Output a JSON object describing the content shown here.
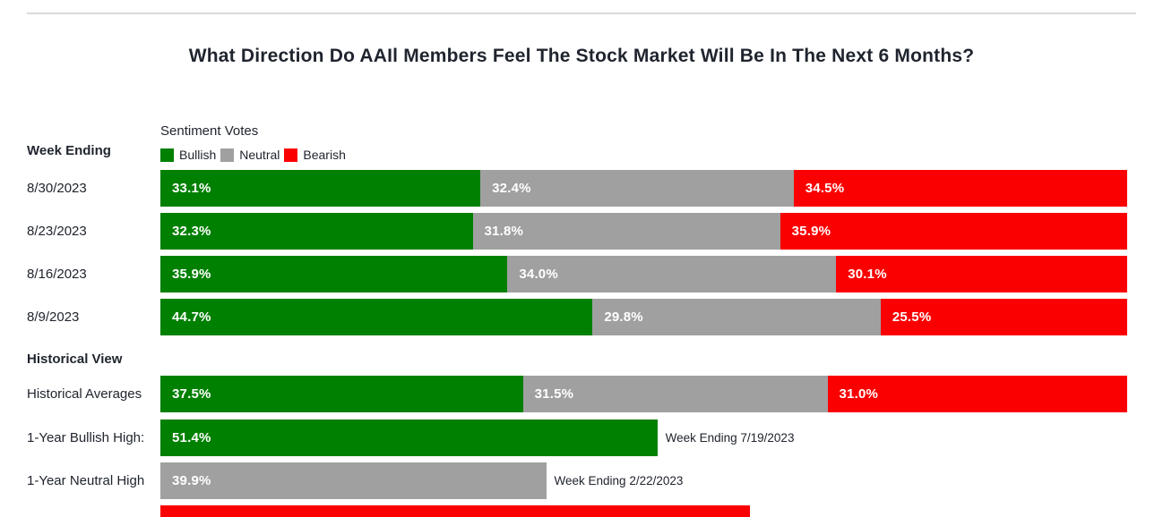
{
  "page": {
    "title": "What Direction Do AAIl Members Feel The Stock Market Will Be In The Next 6 Months?"
  },
  "chart": {
    "left_header": "Week Ending",
    "section2_header": "Historical View",
    "legend": {
      "title": "Sentiment Votes",
      "items": [
        {
          "label": "Bullish",
          "color": "#008000"
        },
        {
          "label": "Neutral",
          "color": "#a0a0a0"
        },
        {
          "label": "Bearish",
          "color": "#fa0000"
        }
      ]
    }
  },
  "chart_data": {
    "type": "bar",
    "orientation": "horizontal",
    "stacked": true,
    "unit": "%",
    "x_range": [
      0,
      100
    ],
    "grid": false,
    "legend_position": "top-left",
    "series_names": [
      "Bullish",
      "Neutral",
      "Bearish"
    ],
    "rows": [
      {
        "label": "8/30/2023",
        "section": "weekly",
        "segments": [
          {
            "series": "Bullish",
            "value": 33.1,
            "text": "33.1%"
          },
          {
            "series": "Neutral",
            "value": 32.4,
            "text": "32.4%"
          },
          {
            "series": "Bearish",
            "value": 34.5,
            "text": "34.5%"
          }
        ]
      },
      {
        "label": "8/23/2023",
        "section": "weekly",
        "segments": [
          {
            "series": "Bullish",
            "value": 32.3,
            "text": "32.3%"
          },
          {
            "series": "Neutral",
            "value": 31.8,
            "text": "31.8%"
          },
          {
            "series": "Bearish",
            "value": 35.9,
            "text": "35.9%"
          }
        ]
      },
      {
        "label": "8/16/2023",
        "section": "weekly",
        "segments": [
          {
            "series": "Bullish",
            "value": 35.9,
            "text": "35.9%"
          },
          {
            "series": "Neutral",
            "value": 34.0,
            "text": "34.0%"
          },
          {
            "series": "Bearish",
            "value": 30.1,
            "text": "30.1%"
          }
        ]
      },
      {
        "label": "8/9/2023",
        "section": "weekly",
        "segments": [
          {
            "series": "Bullish",
            "value": 44.7,
            "text": "44.7%"
          },
          {
            "series": "Neutral",
            "value": 29.8,
            "text": "29.8%"
          },
          {
            "series": "Bearish",
            "value": 25.5,
            "text": "25.5%"
          }
        ]
      },
      {
        "label": "Historical Averages",
        "section": "historical",
        "segments": [
          {
            "series": "Bullish",
            "value": 37.5,
            "text": "37.5%"
          },
          {
            "series": "Neutral",
            "value": 31.5,
            "text": "31.5%"
          },
          {
            "series": "Bearish",
            "value": 31.0,
            "text": "31.0%"
          }
        ]
      },
      {
        "label": "1-Year Bullish High:",
        "section": "historical",
        "segments": [
          {
            "series": "Bullish",
            "value": 51.4,
            "text": "51.4%"
          }
        ],
        "annotation": "Week Ending 7/19/2023"
      },
      {
        "label": "1-Year Neutral High",
        "section": "historical",
        "segments": [
          {
            "series": "Neutral",
            "value": 39.9,
            "text": "39.9%"
          }
        ],
        "annotation": "Week Ending 2/22/2023"
      },
      {
        "label": "",
        "section": "historical",
        "clipped_at_bottom": true,
        "segments": [
          {
            "series": "Bearish",
            "value": 61.0,
            "text": ""
          }
        ]
      }
    ]
  }
}
